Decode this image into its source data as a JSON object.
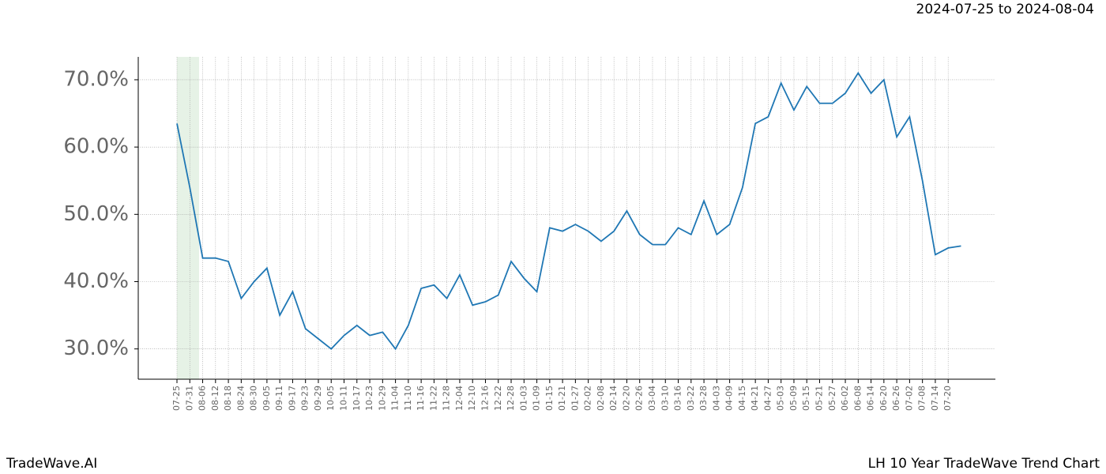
{
  "chart_data": {
    "type": "line",
    "subtitle": "2024-07-25 to 2024-08-04",
    "footer_left": "TradeWave.AI",
    "footer_right": "LH 10 Year TradeWave Trend Chart",
    "categories": [
      "07-25",
      "07-31",
      "08-06",
      "08-12",
      "08-18",
      "08-24",
      "08-30",
      "09-05",
      "09-11",
      "09-17",
      "09-23",
      "09-29",
      "10-05",
      "10-11",
      "10-17",
      "10-23",
      "10-29",
      "11-04",
      "11-10",
      "11-16",
      "11-22",
      "11-28",
      "12-04",
      "12-10",
      "12-16",
      "12-22",
      "12-28",
      "01-03",
      "01-09",
      "01-15",
      "01-21",
      "01-27",
      "02-02",
      "02-08",
      "02-14",
      "02-20",
      "02-26",
      "03-04",
      "03-10",
      "03-16",
      "03-22",
      "03-28",
      "04-03",
      "04-09",
      "04-15",
      "04-21",
      "04-27",
      "05-03",
      "05-09",
      "05-15",
      "05-21",
      "05-27",
      "06-02",
      "06-08",
      "06-14",
      "06-20",
      "06-26",
      "07-02",
      "07-08",
      "07-14",
      "07-20",
      null
    ],
    "series": [
      {
        "color": "#1f77b4",
        "values": [
          63.5,
          54,
          43.5,
          43.5,
          43,
          37.5,
          40,
          42,
          35,
          38.5,
          33,
          31.5,
          30,
          32,
          33.5,
          32,
          32.5,
          30,
          33.5,
          39,
          39.5,
          37.5,
          41,
          36.5,
          37,
          38,
          43,
          40.5,
          38.5,
          48,
          47.5,
          48.5,
          47.5,
          46,
          47.5,
          50.5,
          47,
          45.5,
          45.5,
          48,
          47,
          52,
          47,
          48.5,
          54,
          63.5,
          64.5,
          69.5,
          65.5,
          69,
          66.5,
          66.5,
          68,
          71,
          68,
          70,
          61.5,
          64.5,
          55,
          44,
          45,
          45.3
        ]
      }
    ],
    "ylim": [
      25.5,
      73.4
    ],
    "yticks": [
      {
        "value": 30,
        "label": "30.0%"
      },
      {
        "value": 40,
        "label": "40.0%"
      },
      {
        "value": 50,
        "label": "50.0%"
      },
      {
        "value": 60,
        "label": "60.0%"
      },
      {
        "value": 70,
        "label": "70.0%"
      }
    ],
    "grid": true
  }
}
